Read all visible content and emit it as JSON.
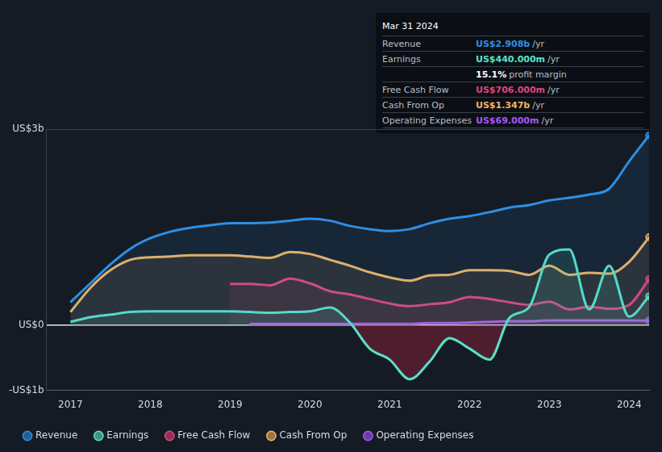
{
  "chart_data": {
    "type": "line",
    "x": [
      2017,
      2017.25,
      2017.5,
      2017.75,
      2018,
      2018.25,
      2018.5,
      2018.75,
      2019,
      2019.25,
      2019.5,
      2019.75,
      2020,
      2020.25,
      2020.5,
      2020.75,
      2021,
      2021.25,
      2021.5,
      2021.75,
      2022,
      2022.25,
      2022.5,
      2022.75,
      2023,
      2023.25,
      2023.5,
      2023.75,
      2024,
      2024.25
    ],
    "xlim": [
      2016.7,
      2024.25
    ],
    "xticks": [
      2017,
      2018,
      2019,
      2020,
      2021,
      2022,
      2023,
      2024
    ],
    "ylim": [
      -1,
      3
    ],
    "yticks": [
      {
        "value": 3,
        "label": "US$3b"
      },
      {
        "value": 0,
        "label": "US$0"
      },
      {
        "value": -1,
        "label": "-US$1b"
      }
    ],
    "grid": true,
    "legend": "bottom",
    "series": [
      {
        "name": "Revenue",
        "color": "#2e8fe3",
        "values": [
          0.35,
          0.64,
          0.93,
          1.17,
          1.33,
          1.43,
          1.49,
          1.53,
          1.56,
          1.56,
          1.57,
          1.6,
          1.63,
          1.6,
          1.52,
          1.47,
          1.44,
          1.47,
          1.56,
          1.63,
          1.67,
          1.73,
          1.8,
          1.84,
          1.91,
          1.95,
          2.0,
          2.09,
          2.51,
          2.908
        ]
      },
      {
        "name": "Earnings",
        "color": "#58e2c6",
        "values": [
          0.05,
          0.12,
          0.16,
          0.2,
          0.21,
          0.21,
          0.21,
          0.21,
          0.21,
          0.2,
          0.19,
          0.2,
          0.21,
          0.27,
          0.04,
          -0.36,
          -0.53,
          -0.83,
          -0.56,
          -0.2,
          -0.36,
          -0.53,
          0.11,
          0.28,
          1.08,
          1.16,
          0.24,
          0.91,
          0.13,
          0.44
        ]
      },
      {
        "name": "Free Cash Flow",
        "color": "#e0457b",
        "values": [
          null,
          null,
          null,
          null,
          null,
          null,
          null,
          null,
          0.63,
          0.63,
          0.61,
          0.71,
          0.64,
          0.52,
          0.47,
          0.4,
          0.33,
          0.29,
          0.32,
          0.35,
          0.43,
          0.4,
          0.35,
          0.31,
          0.36,
          0.24,
          0.28,
          0.25,
          0.31,
          0.706
        ]
      },
      {
        "name": "Cash From Op",
        "color": "#f2b35f",
        "values": [
          0.2,
          0.57,
          0.84,
          1.0,
          1.04,
          1.05,
          1.07,
          1.07,
          1.07,
          1.05,
          1.03,
          1.12,
          1.09,
          1.0,
          0.91,
          0.81,
          0.73,
          0.68,
          0.76,
          0.77,
          0.84,
          0.84,
          0.83,
          0.77,
          0.91,
          0.77,
          0.8,
          0.79,
          0.97,
          1.347
        ]
      },
      {
        "name": "Operating Expenses",
        "color": "#a855f7",
        "values": [
          null,
          null,
          null,
          null,
          null,
          null,
          null,
          null,
          null,
          0.02,
          0.02,
          0.02,
          0.02,
          0.02,
          0.02,
          0.02,
          0.02,
          0.02,
          0.03,
          0.03,
          0.04,
          0.05,
          0.06,
          0.06,
          0.07,
          0.07,
          0.07,
          0.07,
          0.07,
          0.069
        ]
      }
    ]
  },
  "info_box": {
    "date": "Mar 31 2024",
    "rows": [
      {
        "label": "Revenue",
        "value": "US$2.908b",
        "unit": "/yr",
        "color": "#2e8fe3"
      },
      {
        "label": "Earnings",
        "value": "US$440.000m",
        "unit": "/yr",
        "color": "#58e2c6"
      },
      {
        "value": "15.1%",
        "unit": "profit margin",
        "color": "#ffffff"
      },
      {
        "label": "Free Cash Flow",
        "value": "US$706.000m",
        "unit": "/yr",
        "color": "#e0457b"
      },
      {
        "label": "Cash From Op",
        "value": "US$1.347b",
        "unit": "/yr",
        "color": "#f2b35f"
      },
      {
        "label": "Operating Expenses",
        "value": "US$69.000m",
        "unit": "/yr",
        "color": "#a855f7"
      }
    ]
  }
}
